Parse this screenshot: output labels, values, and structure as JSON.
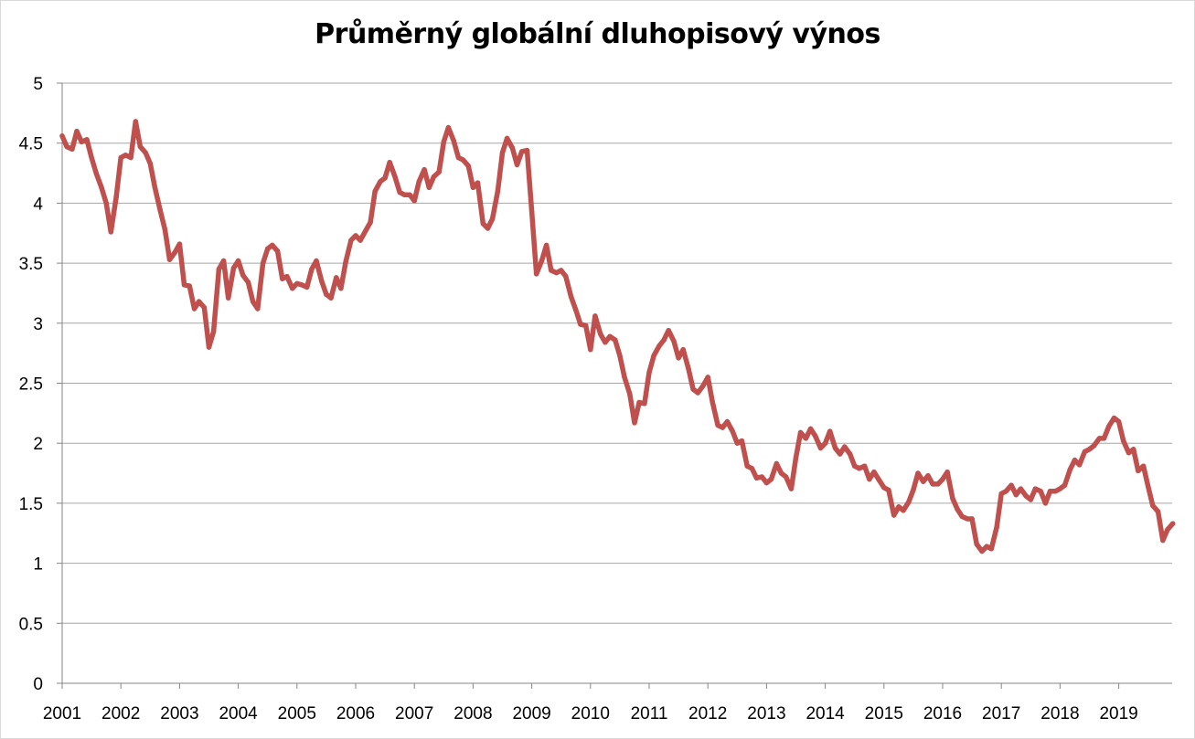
{
  "chart_data": {
    "type": "line",
    "title": "Průměrný globální dluhopisový výnos",
    "xlabel": "",
    "ylabel": "",
    "x_tick_labels": [
      "2001",
      "2002",
      "2003",
      "2004",
      "2005",
      "2006",
      "2007",
      "2008",
      "2009",
      "2010",
      "2011",
      "2012",
      "2013",
      "2014",
      "2015",
      "2016",
      "2017",
      "2018",
      "2019"
    ],
    "y_tick_labels": [
      "0",
      "0.5",
      "1",
      "1.5",
      "2",
      "2.5",
      "3",
      "3.5",
      "4",
      "4.5",
      "5"
    ],
    "ylim": [
      0,
      5
    ],
    "xlim": [
      2001.0,
      2019.87
    ],
    "grid": "horizontal",
    "legend": "none",
    "series": [
      {
        "color": "#c0504d",
        "points": [
          [
            2001.0,
            4.56
          ],
          [
            2001.08,
            4.47
          ],
          [
            2001.17,
            4.45
          ],
          [
            2001.25,
            4.6
          ],
          [
            2001.33,
            4.51
          ],
          [
            2001.42,
            4.53
          ],
          [
            2001.5,
            4.38
          ],
          [
            2001.58,
            4.25
          ],
          [
            2001.67,
            4.13
          ],
          [
            2001.75,
            4.0
          ],
          [
            2001.83,
            3.76
          ],
          [
            2001.92,
            4.05
          ],
          [
            2002.0,
            4.38
          ],
          [
            2002.08,
            4.4
          ],
          [
            2002.17,
            4.38
          ],
          [
            2002.25,
            4.68
          ],
          [
            2002.33,
            4.47
          ],
          [
            2002.42,
            4.42
          ],
          [
            2002.5,
            4.33
          ],
          [
            2002.58,
            4.13
          ],
          [
            2002.67,
            3.94
          ],
          [
            2002.75,
            3.78
          ],
          [
            2002.83,
            3.53
          ],
          [
            2002.92,
            3.59
          ],
          [
            2003.0,
            3.66
          ],
          [
            2003.08,
            3.32
          ],
          [
            2003.17,
            3.31
          ],
          [
            2003.25,
            3.12
          ],
          [
            2003.33,
            3.18
          ],
          [
            2003.42,
            3.13
          ],
          [
            2003.5,
            2.8
          ],
          [
            2003.58,
            2.93
          ],
          [
            2003.67,
            3.45
          ],
          [
            2003.75,
            3.52
          ],
          [
            2003.83,
            3.21
          ],
          [
            2003.92,
            3.46
          ],
          [
            2004.0,
            3.52
          ],
          [
            2004.08,
            3.4
          ],
          [
            2004.17,
            3.34
          ],
          [
            2004.25,
            3.18
          ],
          [
            2004.33,
            3.12
          ],
          [
            2004.42,
            3.5
          ],
          [
            2004.5,
            3.62
          ],
          [
            2004.58,
            3.65
          ],
          [
            2004.67,
            3.6
          ],
          [
            2004.75,
            3.37
          ],
          [
            2004.83,
            3.39
          ],
          [
            2004.92,
            3.29
          ],
          [
            2005.0,
            3.33
          ],
          [
            2005.08,
            3.32
          ],
          [
            2005.17,
            3.3
          ],
          [
            2005.25,
            3.45
          ],
          [
            2005.33,
            3.52
          ],
          [
            2005.42,
            3.35
          ],
          [
            2005.5,
            3.24
          ],
          [
            2005.58,
            3.21
          ],
          [
            2005.67,
            3.38
          ],
          [
            2005.75,
            3.29
          ],
          [
            2005.83,
            3.51
          ],
          [
            2005.92,
            3.69
          ],
          [
            2006.0,
            3.73
          ],
          [
            2006.08,
            3.69
          ],
          [
            2006.17,
            3.77
          ],
          [
            2006.25,
            3.84
          ],
          [
            2006.33,
            4.1
          ],
          [
            2006.42,
            4.18
          ],
          [
            2006.5,
            4.21
          ],
          [
            2006.58,
            4.34
          ],
          [
            2006.67,
            4.22
          ],
          [
            2006.75,
            4.09
          ],
          [
            2006.83,
            4.07
          ],
          [
            2006.92,
            4.07
          ],
          [
            2007.0,
            4.02
          ],
          [
            2007.08,
            4.18
          ],
          [
            2007.17,
            4.28
          ],
          [
            2007.25,
            4.13
          ],
          [
            2007.33,
            4.22
          ],
          [
            2007.42,
            4.26
          ],
          [
            2007.5,
            4.51
          ],
          [
            2007.58,
            4.63
          ],
          [
            2007.67,
            4.52
          ],
          [
            2007.75,
            4.38
          ],
          [
            2007.83,
            4.36
          ],
          [
            2007.92,
            4.31
          ],
          [
            2008.0,
            4.13
          ],
          [
            2008.08,
            4.17
          ],
          [
            2008.17,
            3.83
          ],
          [
            2008.25,
            3.79
          ],
          [
            2008.33,
            3.87
          ],
          [
            2008.42,
            4.1
          ],
          [
            2008.5,
            4.42
          ],
          [
            2008.58,
            4.54
          ],
          [
            2008.67,
            4.46
          ],
          [
            2008.75,
            4.32
          ],
          [
            2008.83,
            4.43
          ],
          [
            2008.92,
            4.44
          ],
          [
            2009.0,
            3.93
          ],
          [
            2009.08,
            3.41
          ],
          [
            2009.17,
            3.52
          ],
          [
            2009.25,
            3.65
          ],
          [
            2009.33,
            3.44
          ],
          [
            2009.42,
            3.42
          ],
          [
            2009.5,
            3.44
          ],
          [
            2009.58,
            3.39
          ],
          [
            2009.67,
            3.22
          ],
          [
            2009.75,
            3.11
          ],
          [
            2009.83,
            2.99
          ],
          [
            2009.92,
            2.98
          ],
          [
            2010.0,
            2.78
          ],
          [
            2010.08,
            3.06
          ],
          [
            2010.17,
            2.91
          ],
          [
            2010.25,
            2.84
          ],
          [
            2010.33,
            2.89
          ],
          [
            2010.42,
            2.86
          ],
          [
            2010.5,
            2.73
          ],
          [
            2010.58,
            2.55
          ],
          [
            2010.67,
            2.41
          ],
          [
            2010.75,
            2.17
          ],
          [
            2010.83,
            2.34
          ],
          [
            2010.92,
            2.33
          ],
          [
            2011.0,
            2.59
          ],
          [
            2011.08,
            2.73
          ],
          [
            2011.17,
            2.81
          ],
          [
            2011.25,
            2.86
          ],
          [
            2011.33,
            2.94
          ],
          [
            2011.42,
            2.85
          ],
          [
            2011.5,
            2.71
          ],
          [
            2011.58,
            2.78
          ],
          [
            2011.67,
            2.62
          ],
          [
            2011.75,
            2.45
          ],
          [
            2011.83,
            2.42
          ],
          [
            2011.92,
            2.48
          ],
          [
            2012.0,
            2.55
          ],
          [
            2012.08,
            2.34
          ],
          [
            2012.17,
            2.15
          ],
          [
            2012.25,
            2.13
          ],
          [
            2012.33,
            2.18
          ],
          [
            2012.42,
            2.1
          ],
          [
            2012.5,
            2.0
          ],
          [
            2012.58,
            2.02
          ],
          [
            2012.67,
            1.81
          ],
          [
            2012.75,
            1.79
          ],
          [
            2012.83,
            1.71
          ],
          [
            2012.92,
            1.72
          ],
          [
            2013.0,
            1.67
          ],
          [
            2013.08,
            1.7
          ],
          [
            2013.17,
            1.83
          ],
          [
            2013.25,
            1.75
          ],
          [
            2013.33,
            1.72
          ],
          [
            2013.42,
            1.62
          ],
          [
            2013.5,
            1.88
          ],
          [
            2013.58,
            2.09
          ],
          [
            2013.67,
            2.04
          ],
          [
            2013.75,
            2.12
          ],
          [
            2013.83,
            2.06
          ],
          [
            2013.92,
            1.96
          ],
          [
            2014.0,
            2.0
          ],
          [
            2014.08,
            2.1
          ],
          [
            2014.17,
            1.96
          ],
          [
            2014.25,
            1.91
          ],
          [
            2014.33,
            1.97
          ],
          [
            2014.42,
            1.91
          ],
          [
            2014.5,
            1.81
          ],
          [
            2014.58,
            1.79
          ],
          [
            2014.67,
            1.81
          ],
          [
            2014.75,
            1.7
          ],
          [
            2014.83,
            1.76
          ],
          [
            2014.92,
            1.69
          ],
          [
            2015.0,
            1.63
          ],
          [
            2015.08,
            1.61
          ],
          [
            2015.17,
            1.4
          ],
          [
            2015.25,
            1.47
          ],
          [
            2015.33,
            1.44
          ],
          [
            2015.42,
            1.51
          ],
          [
            2015.5,
            1.61
          ],
          [
            2015.58,
            1.75
          ],
          [
            2015.67,
            1.68
          ],
          [
            2015.75,
            1.73
          ],
          [
            2015.83,
            1.66
          ],
          [
            2015.92,
            1.66
          ],
          [
            2016.0,
            1.7
          ],
          [
            2016.08,
            1.76
          ],
          [
            2016.17,
            1.54
          ],
          [
            2016.25,
            1.45
          ],
          [
            2016.33,
            1.39
          ],
          [
            2016.42,
            1.37
          ],
          [
            2016.5,
            1.37
          ],
          [
            2016.58,
            1.16
          ],
          [
            2016.67,
            1.1
          ],
          [
            2016.75,
            1.14
          ],
          [
            2016.83,
            1.12
          ],
          [
            2016.92,
            1.3
          ],
          [
            2017.0,
            1.58
          ],
          [
            2017.08,
            1.6
          ],
          [
            2017.17,
            1.65
          ],
          [
            2017.25,
            1.57
          ],
          [
            2017.33,
            1.62
          ],
          [
            2017.42,
            1.56
          ],
          [
            2017.5,
            1.53
          ],
          [
            2017.58,
            1.62
          ],
          [
            2017.67,
            1.6
          ],
          [
            2017.75,
            1.5
          ],
          [
            2017.83,
            1.6
          ],
          [
            2017.92,
            1.6
          ],
          [
            2018.0,
            1.62
          ],
          [
            2018.08,
            1.65
          ],
          [
            2018.17,
            1.78
          ],
          [
            2018.25,
            1.86
          ],
          [
            2018.33,
            1.82
          ],
          [
            2018.42,
            1.93
          ],
          [
            2018.5,
            1.95
          ],
          [
            2018.58,
            1.98
          ],
          [
            2018.67,
            2.04
          ],
          [
            2018.75,
            2.04
          ],
          [
            2018.83,
            2.14
          ],
          [
            2018.92,
            2.21
          ],
          [
            2019.0,
            2.18
          ],
          [
            2019.08,
            2.02
          ],
          [
            2019.17,
            1.92
          ],
          [
            2019.25,
            1.95
          ],
          [
            2019.33,
            1.77
          ],
          [
            2019.42,
            1.81
          ],
          [
            2019.5,
            1.64
          ],
          [
            2019.58,
            1.48
          ],
          [
            2019.67,
            1.43
          ],
          [
            2019.75,
            1.19
          ],
          [
            2019.83,
            1.28
          ],
          [
            2019.92,
            1.33
          ]
        ]
      }
    ]
  }
}
